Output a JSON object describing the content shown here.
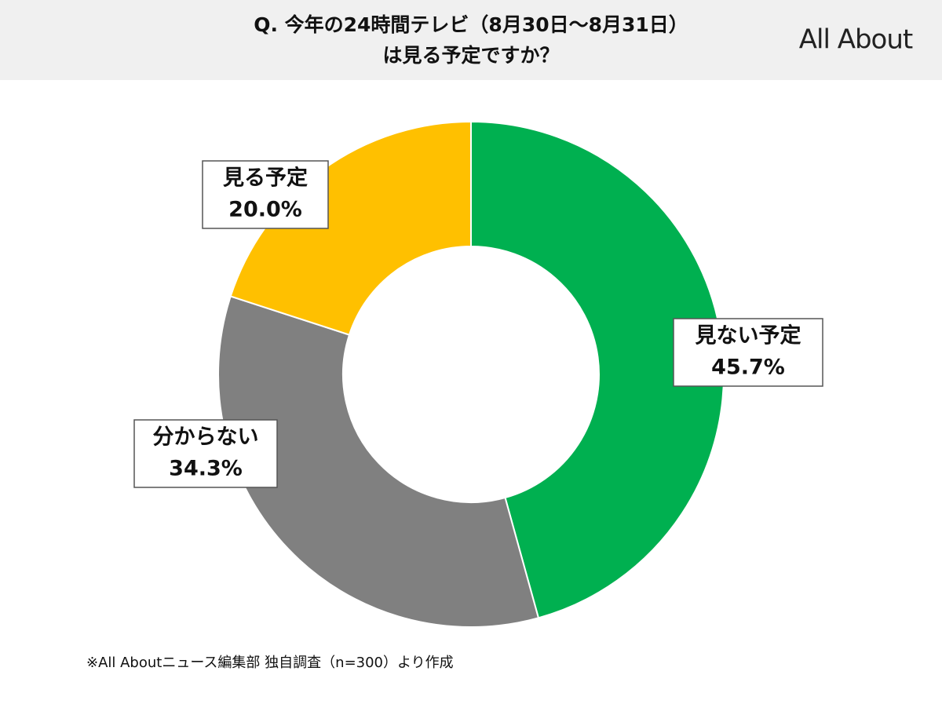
{
  "chart_data": {
    "type": "donut",
    "title": [
      "Q. 今年の24時間テレビ（8月30日～8月31日）",
      "は見る予定ですか？"
    ],
    "logo": "All About",
    "categories": [
      "見ない予定",
      "分からない",
      "見る予定"
    ],
    "values": [
      45.7,
      34.3,
      20.0
    ],
    "value_labels": [
      "45.7%",
      "34.3%",
      "20.0%"
    ],
    "colors": [
      "#00b050",
      "#808080",
      "#ffc000"
    ],
    "note": "※All Aboutニュース編集部 独自調査（n=300）より作成"
  }
}
